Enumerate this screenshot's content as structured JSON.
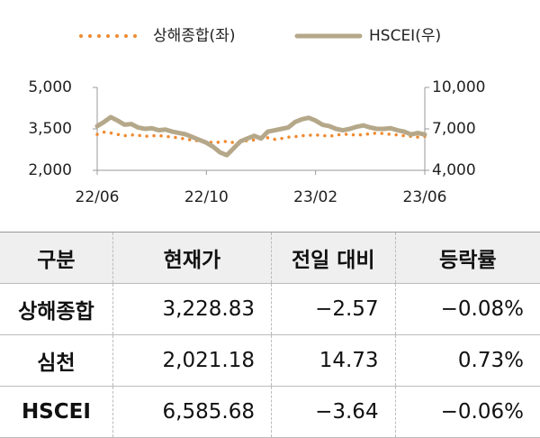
{
  "chart_data": {
    "type": "line",
    "categories": [
      "22/06",
      null,
      null,
      null,
      null,
      null,
      null,
      null,
      null,
      null,
      null,
      null,
      null,
      null,
      null,
      null,
      "22/10",
      null,
      null,
      null,
      null,
      null,
      null,
      null,
      null,
      null,
      null,
      null,
      null,
      null,
      null,
      null,
      "23/02",
      null,
      null,
      null,
      null,
      null,
      null,
      null,
      null,
      null,
      null,
      null,
      null,
      null,
      null,
      null,
      "23/06"
    ],
    "series": [
      {
        "name": "상해종합(좌)",
        "color": "#f08a30",
        "style": "dotted",
        "axis": "y",
        "values": [
          3300,
          3380,
          3350,
          3300,
          3250,
          3280,
          3270,
          3230,
          3250,
          3260,
          3230,
          3200,
          3180,
          3120,
          3100,
          3050,
          3050,
          3000,
          3020,
          3050,
          3000,
          2990,
          3080,
          3100,
          3150,
          3180,
          3120,
          3150,
          3200,
          3220,
          3250,
          3270,
          3280,
          3260,
          3230,
          3280,
          3300,
          3310,
          3260,
          3300,
          3320,
          3350,
          3330,
          3300,
          3280,
          3250,
          3230,
          3200,
          3229
        ]
      },
      {
        "name": "HSCEI(우)",
        "color": "#b5a88a",
        "style": "solid",
        "axis": "y2",
        "values": [
          7200,
          7500,
          7850,
          7600,
          7300,
          7350,
          7100,
          7000,
          7050,
          6900,
          6950,
          6800,
          6700,
          6600,
          6400,
          6200,
          6000,
          5700,
          5300,
          5100,
          5600,
          6100,
          6300,
          6500,
          6300,
          6800,
          6900,
          7000,
          7100,
          7500,
          7700,
          7800,
          7600,
          7300,
          7200,
          7000,
          6900,
          7000,
          7150,
          7250,
          7100,
          7000,
          7000,
          7050,
          6900,
          6800,
          6600,
          6700,
          6586
        ]
      }
    ],
    "ylim": [
      2000,
      5000
    ],
    "yticks": [
      {
        "value": 2000,
        "label": "2,000"
      },
      {
        "value": 3500,
        "label": "3,500"
      },
      {
        "value": 5000,
        "label": "5,000"
      }
    ],
    "y2lim": [
      4000,
      10000
    ],
    "y2ticks": [
      {
        "value": 4000,
        "label": "4,000"
      },
      {
        "value": 7000,
        "label": "7,000"
      },
      {
        "value": 10000,
        "label": "10,000"
      }
    ],
    "legend": "top"
  },
  "table": {
    "header": [
      "구분",
      "현재가",
      "전일 대비",
      "등락률"
    ],
    "rows": [
      [
        "상해종합",
        "3,228.83",
        "−2.57",
        "−0.08%"
      ],
      [
        "심천",
        "2,021.18",
        "14.73",
        "0.73%"
      ],
      [
        "HSCEI",
        "6,585.68",
        "−3.64",
        "−0.06%"
      ]
    ]
  }
}
